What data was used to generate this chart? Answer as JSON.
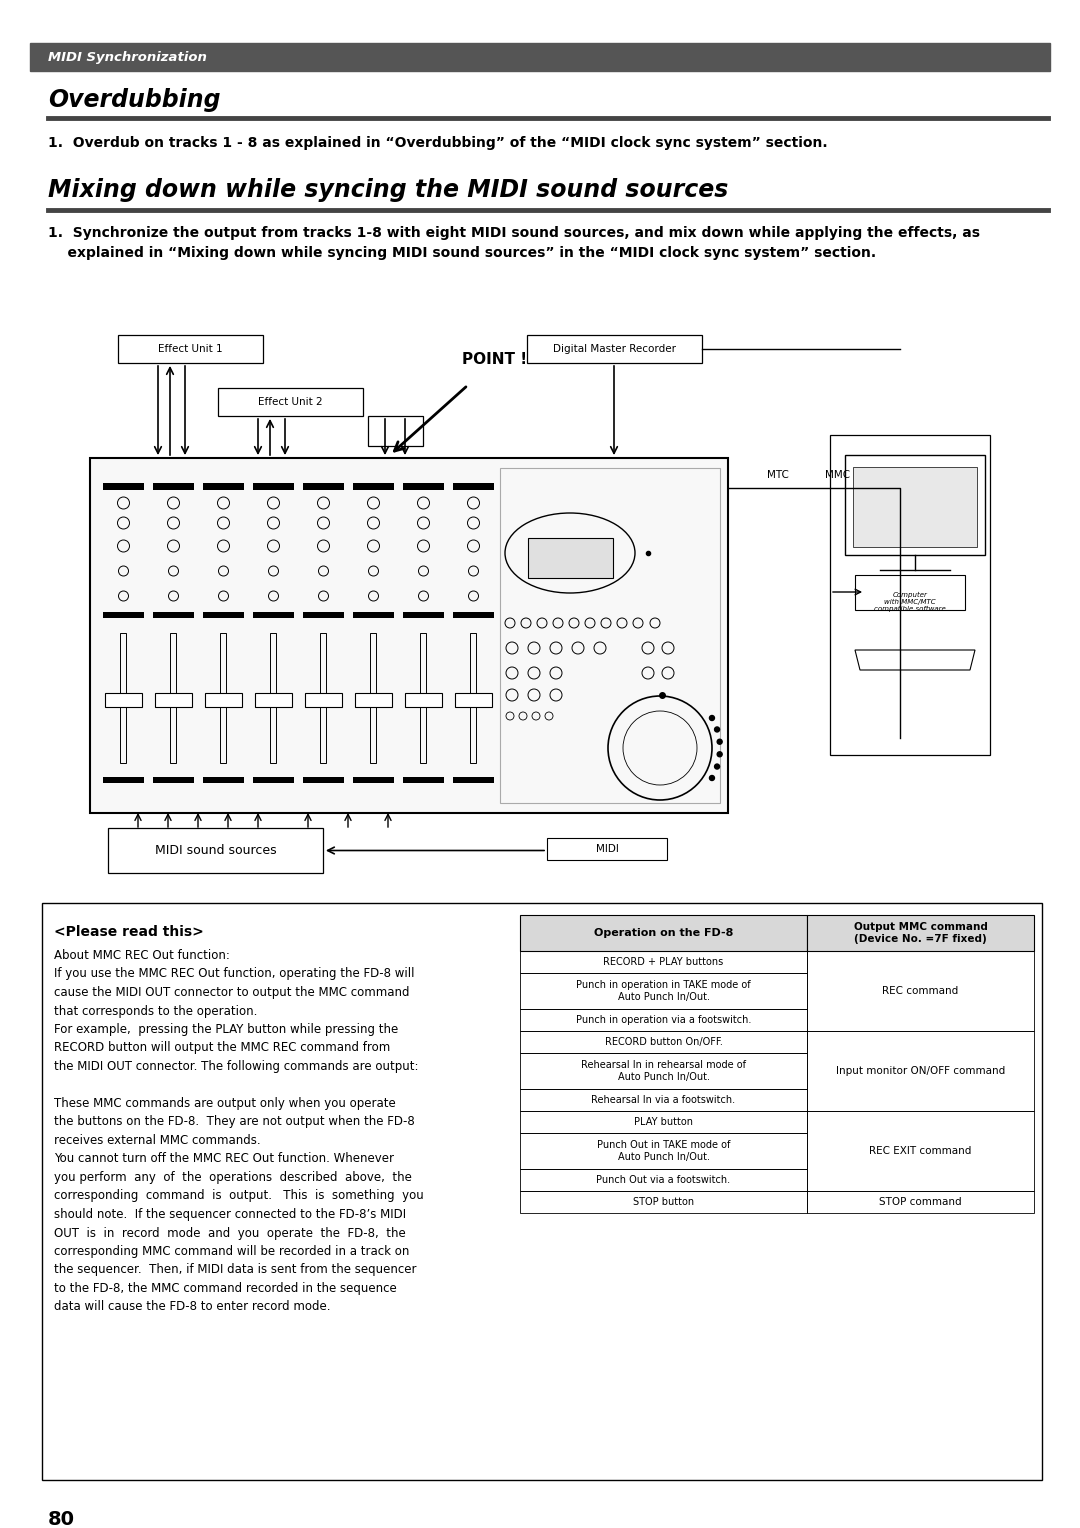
{
  "page_bg": "#ffffff",
  "header_bg": "#555555",
  "header_text": "MIDI Synchronization",
  "header_text_color": "#ffffff",
  "title1": "Overdubbing",
  "rule_color": "#444444",
  "body1": "1.  Overdub on tracks 1 - 8 as explained in “Overdubbing” of the “MIDI clock sync system” section.",
  "title2": "Mixing down while syncing the MIDI sound sources",
  "body2_line1": "1.  Synchronize the output from tracks 1-8 with eight MIDI sound sources, and mix down while applying the effects, as",
  "body2_line2": "    explained in “Mixing down while syncing MIDI sound sources” in the “MIDI clock sync system” section.",
  "please_read_title": "<Please read this>",
  "please_read_body": [
    "About MMC REC Out function:",
    "If you use the MMC REC Out function, operating the FD-8 will",
    "cause the MIDI OUT connector to output the MMC command",
    "that corresponds to the operation.",
    "For example,  pressing the PLAY button while pressing the",
    "RECORD button will output the MMC REC command from",
    "the MIDI OUT connector. The following commands are output:",
    "",
    "These MMC commands are output only when you operate",
    "the buttons on the FD-8.  They are not output when the FD-8",
    "receives external MMC commands.",
    "You cannot turn off the MMC REC Out function. Whenever",
    "you perform  any  of  the  operations  described  above,  the",
    "corresponding  command  is  output.   This  is  something  you",
    "should note.  If the sequencer connected to the FD-8’s MIDI",
    "OUT  is  in  record  mode  and  you  operate  the  FD-8,  the",
    "corresponding MMC command will be recorded in a track on",
    "the sequencer.  Then, if MIDI data is sent from the sequencer",
    "to the FD-8, the MMC command recorded in the sequence",
    "data will cause the FD-8 to enter record mode."
  ],
  "table_col1_header": "Operation on the FD-8",
  "table_col2_header": "Output MMC command\n(Device No. =7F fixed)",
  "table_rows": [
    [
      "RECORD + PLAY buttons",
      ""
    ],
    [
      "Punch in operation in TAKE mode of\nAuto Punch In/Out.",
      "REC command"
    ],
    [
      "Punch in operation via a footswitch.",
      ""
    ],
    [
      "RECORD button On/OFF.",
      ""
    ],
    [
      "Rehearsal In in rehearsal mode of\nAuto Punch In/Out.",
      "Input monitor ON/OFF command"
    ],
    [
      "Rehearsal In via a footswitch.",
      ""
    ],
    [
      "PLAY button",
      ""
    ],
    [
      "Punch Out in TAKE mode of\nAuto Punch In/Out.",
      "REC EXIT command"
    ],
    [
      "Punch Out via a footswitch.",
      ""
    ],
    [
      "STOP button",
      "STOP command"
    ]
  ],
  "page_number": "80"
}
